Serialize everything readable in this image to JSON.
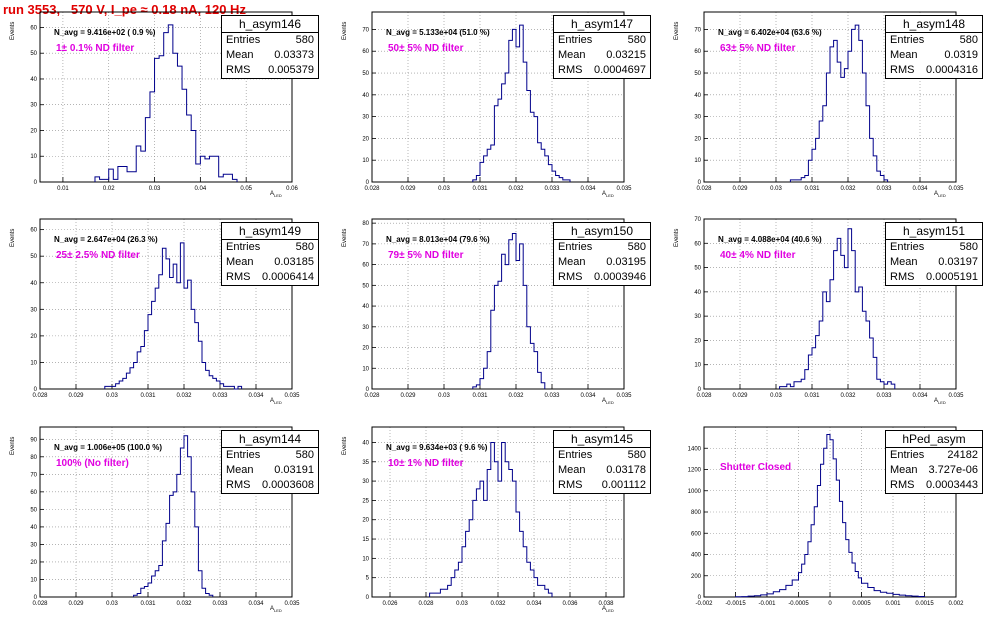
{
  "run_title": "run 3553,   570 V, I_pe ≈ 0.18 nA, 120 Hz",
  "chart_data": [
    {
      "type": "bar",
      "name": "h_asym146",
      "stats": {
        "entries": "580",
        "mean": "0.03373",
        "rms": "0.005379"
      },
      "navg": "N_avg = 9.416e+02 ( 0.9 %)",
      "filter": "1± 0.1% ND filter",
      "xlabel": "A",
      "xlabel_sub": "LED",
      "ylabel": "Events",
      "xlim": [
        0.005,
        0.06
      ],
      "ylim": [
        0,
        66
      ],
      "xticks": [
        0.01,
        0.02,
        0.03,
        0.04,
        0.05,
        0.06
      ],
      "xticklabels": [
        "0.01",
        "0.02",
        "0.03",
        "0.04",
        "0.05",
        "0.06"
      ],
      "yticks": [
        0,
        10,
        20,
        30,
        40,
        50,
        60
      ],
      "bin_edges": [
        0.017,
        0.018,
        0.02,
        0.021,
        0.022,
        0.024,
        0.025,
        0.026,
        0.027,
        0.028,
        0.029,
        0.03,
        0.031,
        0.032,
        0.033,
        0.034,
        0.035,
        0.036,
        0.037,
        0.038,
        0.039,
        0.04,
        0.041,
        0.042,
        0.043,
        0.044,
        0.045,
        0.046,
        0.047,
        0.048
      ],
      "counts": [
        2,
        1,
        5,
        1,
        6,
        4,
        4,
        14,
        12,
        25,
        35,
        48,
        49,
        58,
        61,
        50,
        45,
        36,
        26,
        20,
        7,
        10,
        9,
        10,
        10,
        2,
        3,
        3,
        1
      ]
    },
    {
      "type": "bar",
      "name": "h_asym147",
      "stats": {
        "entries": "580",
        "mean": "0.03215",
        "rms": "0.0004697"
      },
      "navg": "N_avg = 5.133e+04 (51.0 %)",
      "filter": "50± 5% ND filter",
      "xlabel": "A",
      "xlabel_sub": "LED",
      "ylabel": "Events",
      "xlim": [
        0.028,
        0.035
      ],
      "ylim": [
        0,
        78
      ],
      "xticks": [
        0.028,
        0.029,
        0.03,
        0.031,
        0.032,
        0.033,
        0.034,
        0.035
      ],
      "xticklabels": [
        "0.028",
        "0.029",
        "0.03",
        "0.031",
        "0.032",
        "0.033",
        "0.034",
        "0.035"
      ],
      "yticks": [
        0,
        10,
        20,
        30,
        40,
        50,
        60,
        70
      ],
      "bin_edges": [
        0.0308,
        0.0309,
        0.031,
        0.0311,
        0.0312,
        0.0313,
        0.0314,
        0.0315,
        0.0316,
        0.0317,
        0.0318,
        0.0319,
        0.032,
        0.0321,
        0.0322,
        0.0323,
        0.0324,
        0.0325,
        0.0326,
        0.0327,
        0.0328,
        0.0329,
        0.033,
        0.0331,
        0.0332,
        0.0333,
        0.0334,
        0.0335
      ],
      "counts": [
        1,
        3,
        9,
        12,
        15,
        17,
        35,
        38,
        45,
        50,
        65,
        70,
        62,
        72,
        55,
        42,
        32,
        30,
        18,
        15,
        12,
        8,
        5,
        3,
        2,
        1,
        1
      ]
    },
    {
      "type": "bar",
      "name": "h_asym148",
      "stats": {
        "entries": "580",
        "mean": "0.0319",
        "rms": "0.0004316"
      },
      "navg": "N_avg = 6.402e+04 (63.6 %)",
      "filter": "63± 5% ND filter",
      "xlabel": "A",
      "xlabel_sub": "LED",
      "ylabel": "Events",
      "xlim": [
        0.028,
        0.035
      ],
      "ylim": [
        0,
        78
      ],
      "xticks": [
        0.028,
        0.029,
        0.03,
        0.031,
        0.032,
        0.033,
        0.034,
        0.035
      ],
      "xticklabels": [
        "0.028",
        "0.029",
        "0.03",
        "0.031",
        "0.032",
        "0.033",
        "0.034",
        "0.035"
      ],
      "yticks": [
        0,
        10,
        20,
        30,
        40,
        50,
        60,
        70
      ],
      "bin_edges": [
        0.0304,
        0.0305,
        0.0306,
        0.0307,
        0.0308,
        0.0309,
        0.031,
        0.0311,
        0.0312,
        0.0313,
        0.0314,
        0.0315,
        0.0316,
        0.0317,
        0.0318,
        0.0319,
        0.032,
        0.0321,
        0.0322,
        0.0323,
        0.0324,
        0.0325,
        0.0326,
        0.0327,
        0.0328,
        0.0329,
        0.033,
        0.0331
      ],
      "counts": [
        1,
        1,
        1,
        2,
        3,
        10,
        15,
        20,
        28,
        35,
        50,
        62,
        65,
        55,
        48,
        52,
        60,
        70,
        72,
        65,
        50,
        35,
        20,
        12,
        5,
        3,
        1
      ]
    },
    {
      "type": "bar",
      "name": "h_asym149",
      "stats": {
        "entries": "580",
        "mean": "0.03185",
        "rms": "0.0006414"
      },
      "navg": "N_avg = 2.647e+04 (26.3 %)",
      "filter": "25± 2.5% ND filter",
      "xlabel": "A",
      "xlabel_sub": "LED",
      "ylabel": "Events",
      "xlim": [
        0.028,
        0.035
      ],
      "ylim": [
        0,
        64
      ],
      "xticks": [
        0.028,
        0.029,
        0.03,
        0.031,
        0.032,
        0.033,
        0.034,
        0.035
      ],
      "xticklabels": [
        "0.028",
        "0.029",
        "0.03",
        "0.031",
        "0.032",
        "0.033",
        "0.034",
        "0.035"
      ],
      "yticks": [
        0,
        10,
        20,
        30,
        40,
        50,
        60
      ],
      "bin_edges": [
        0.0298,
        0.0299,
        0.03,
        0.0301,
        0.0302,
        0.0303,
        0.0304,
        0.0305,
        0.0306,
        0.0307,
        0.0308,
        0.0309,
        0.031,
        0.0311,
        0.0312,
        0.0313,
        0.0314,
        0.0315,
        0.0316,
        0.0317,
        0.0318,
        0.0319,
        0.032,
        0.0321,
        0.0322,
        0.0323,
        0.0324,
        0.0325,
        0.0326,
        0.0327,
        0.0328,
        0.0329,
        0.033,
        0.0331,
        0.0332,
        0.0333,
        0.0334,
        0.0335,
        0.0336
      ],
      "counts": [
        1,
        1,
        1,
        2,
        3,
        4,
        6,
        8,
        10,
        14,
        16,
        22,
        28,
        33,
        38,
        43,
        53,
        49,
        42,
        47,
        40,
        55,
        38,
        41,
        30,
        25,
        18,
        10,
        7,
        5,
        4,
        3,
        2,
        1,
        1,
        1,
        0,
        1
      ]
    },
    {
      "type": "bar",
      "name": "h_asym150",
      "stats": {
        "entries": "580",
        "mean": "0.03195",
        "rms": "0.0003946"
      },
      "navg": "N_avg = 8.013e+04 (79.6 %)",
      "filter": "79± 5% ND filter",
      "xlabel": "A",
      "xlabel_sub": "LED",
      "ylabel": "Events",
      "xlim": [
        0.028,
        0.035
      ],
      "ylim": [
        0,
        82
      ],
      "xticks": [
        0.028,
        0.029,
        0.03,
        0.031,
        0.032,
        0.033,
        0.034,
        0.035
      ],
      "xticklabels": [
        "0.028",
        "0.029",
        "0.03",
        "0.031",
        "0.032",
        "0.033",
        "0.034",
        "0.035"
      ],
      "yticks": [
        0,
        10,
        20,
        30,
        40,
        50,
        60,
        70,
        80
      ],
      "bin_edges": [
        0.0308,
        0.0309,
        0.031,
        0.0311,
        0.0312,
        0.0313,
        0.0314,
        0.0315,
        0.0316,
        0.0317,
        0.0318,
        0.0319,
        0.032,
        0.0321,
        0.0322,
        0.0323,
        0.0324,
        0.0325,
        0.0326,
        0.0327,
        0.0328
      ],
      "counts": [
        1,
        2,
        5,
        10,
        18,
        38,
        50,
        52,
        65,
        60,
        72,
        75,
        62,
        70,
        50,
        30,
        22,
        18,
        8,
        3
      ]
    },
    {
      "type": "bar",
      "name": "h_asym151",
      "stats": {
        "entries": "580",
        "mean": "0.03197",
        "rms": "0.0005191"
      },
      "navg": "N_avg = 4.088e+04 (40.6 %)",
      "filter": "40± 4% ND filter",
      "xlabel": "A",
      "xlabel_sub": "LED",
      "ylabel": "Events",
      "xlim": [
        0.028,
        0.035
      ],
      "ylim": [
        0,
        70
      ],
      "xticks": [
        0.028,
        0.029,
        0.03,
        0.031,
        0.032,
        0.033,
        0.034,
        0.035
      ],
      "xticklabels": [
        "0.028",
        "0.029",
        "0.03",
        "0.031",
        "0.032",
        "0.033",
        "0.034",
        "0.035"
      ],
      "yticks": [
        0,
        10,
        20,
        30,
        40,
        50,
        60,
        70
      ],
      "bin_edges": [
        0.0301,
        0.0302,
        0.0303,
        0.0304,
        0.0305,
        0.0306,
        0.0307,
        0.0308,
        0.0309,
        0.031,
        0.0311,
        0.0312,
        0.0313,
        0.0314,
        0.0315,
        0.0316,
        0.0317,
        0.0318,
        0.0319,
        0.032,
        0.0321,
        0.0322,
        0.0323,
        0.0324,
        0.0325,
        0.0326,
        0.0327,
        0.0328,
        0.0329,
        0.033,
        0.0331,
        0.0332,
        0.0333
      ],
      "counts": [
        1,
        1,
        2,
        1,
        3,
        3,
        4,
        8,
        14,
        17,
        22,
        28,
        40,
        36,
        45,
        57,
        62,
        55,
        50,
        66,
        57,
        40,
        42,
        32,
        28,
        21,
        13,
        4,
        3,
        2,
        3,
        2
      ]
    },
    {
      "type": "bar",
      "name": "h_asym144",
      "stats": {
        "entries": "580",
        "mean": "0.03191",
        "rms": "0.0003608"
      },
      "navg": "N_avg = 1.006e+05 (100.0 %)",
      "filter": "100% (No filter)",
      "xlabel": "A",
      "xlabel_sub": "LED",
      "ylabel": "Events",
      "xlim": [
        0.028,
        0.035
      ],
      "ylim": [
        0,
        97
      ],
      "xticks": [
        0.028,
        0.029,
        0.03,
        0.031,
        0.032,
        0.033,
        0.034,
        0.035
      ],
      "xticklabels": [
        "0.028",
        "0.029",
        "0.03",
        "0.031",
        "0.032",
        "0.033",
        "0.034",
        "0.035"
      ],
      "yticks": [
        0,
        10,
        20,
        30,
        40,
        50,
        60,
        70,
        80,
        90
      ],
      "bin_edges": [
        0.0306,
        0.0307,
        0.0308,
        0.0309,
        0.031,
        0.0311,
        0.0312,
        0.0313,
        0.0314,
        0.0315,
        0.0316,
        0.0317,
        0.0318,
        0.0319,
        0.032,
        0.0321,
        0.0322,
        0.0323,
        0.0324,
        0.0325,
        0.0326,
        0.0327,
        0.0328
      ],
      "counts": [
        1,
        2,
        5,
        6,
        8,
        12,
        15,
        18,
        32,
        42,
        58,
        60,
        70,
        85,
        92,
        80,
        60,
        40,
        15,
        5,
        2,
        1
      ]
    },
    {
      "type": "bar",
      "name": "h_asym145",
      "stats": {
        "entries": "580",
        "mean": "0.03178",
        "rms": "0.001112"
      },
      "navg": "N_avg = 9.634e+03 ( 9.6 %)",
      "filter": "10± 1% ND filter",
      "xlabel": "A",
      "xlabel_sub": "LED",
      "ylabel": "Events",
      "xlim": [
        0.025,
        0.039
      ],
      "ylim": [
        0,
        44
      ],
      "xticks": [
        0.026,
        0.028,
        0.03,
        0.032,
        0.034,
        0.036,
        0.038
      ],
      "xticklabels": [
        "0.026",
        "0.028",
        "0.03",
        "0.032",
        "0.034",
        "0.036",
        "0.038"
      ],
      "yticks": [
        0,
        5,
        10,
        15,
        20,
        25,
        30,
        35,
        40
      ],
      "bin_edges": [
        0.0282,
        0.0284,
        0.0286,
        0.0288,
        0.029,
        0.0292,
        0.0294,
        0.0296,
        0.0298,
        0.03,
        0.0302,
        0.0304,
        0.0306,
        0.0308,
        0.031,
        0.0312,
        0.0314,
        0.0316,
        0.0318,
        0.032,
        0.0322,
        0.0324,
        0.0326,
        0.0328,
        0.033,
        0.0332,
        0.0334,
        0.0336,
        0.0338,
        0.034,
        0.0342,
        0.0344,
        0.0346,
        0.0348,
        0.035
      ],
      "counts": [
        1,
        1,
        1,
        2,
        2,
        3,
        5,
        7,
        9,
        13,
        17,
        20,
        25,
        28,
        30,
        25,
        33,
        40,
        35,
        30,
        40,
        35,
        33,
        30,
        22,
        17,
        13,
        9,
        7,
        5,
        3,
        3,
        2,
        1
      ]
    },
    {
      "type": "bar",
      "name": "hPed_asym",
      "stats": {
        "entries": "24182",
        "mean": "3.727e-06",
        "rms": "0.0003443"
      },
      "navg": "",
      "filter": "Shutter Closed",
      "xlabel": "",
      "xlabel_sub": "",
      "ylabel": "",
      "xlim": [
        -0.002,
        0.002
      ],
      "ylim": [
        0,
        1600
      ],
      "xticks": [
        -0.002,
        -0.0015,
        -0.001,
        -0.0005,
        0,
        0.0005,
        0.001,
        0.0015,
        0.002
      ],
      "xticklabels": [
        "-0.002",
        "-0.0015",
        "-0.001",
        "-0.0005",
        "0",
        "0.0005",
        "0.001",
        "0.0015",
        "0.002"
      ],
      "yticks": [
        0,
        200,
        400,
        600,
        800,
        1000,
        1200,
        1400
      ],
      "bin_edges": [
        -0.0015,
        -0.0014,
        -0.0013,
        -0.0012,
        -0.0011,
        -0.001,
        -0.0009,
        -0.0008,
        -0.0007,
        -0.0006,
        -0.0005,
        -0.00045,
        -0.0004,
        -0.00035,
        -0.0003,
        -0.00025,
        -0.0002,
        -0.00015,
        -0.0001,
        -5e-05,
        0.0,
        5e-05,
        0.0001,
        0.00015,
        0.0002,
        0.00025,
        0.0003,
        0.00035,
        0.0004,
        0.00045,
        0.0005,
        0.0006,
        0.0007,
        0.0008,
        0.0009,
        0.001,
        0.0011,
        0.0012,
        0.0013,
        0.0014,
        0.0015
      ],
      "counts": [
        2,
        4,
        8,
        12,
        20,
        30,
        50,
        70,
        110,
        160,
        230,
        310,
        400,
        520,
        680,
        850,
        1050,
        1250,
        1400,
        1530,
        1480,
        1300,
        1100,
        900,
        700,
        540,
        420,
        320,
        240,
        180,
        130,
        90,
        60,
        45,
        35,
        25,
        18,
        12,
        8,
        5
      ]
    }
  ]
}
